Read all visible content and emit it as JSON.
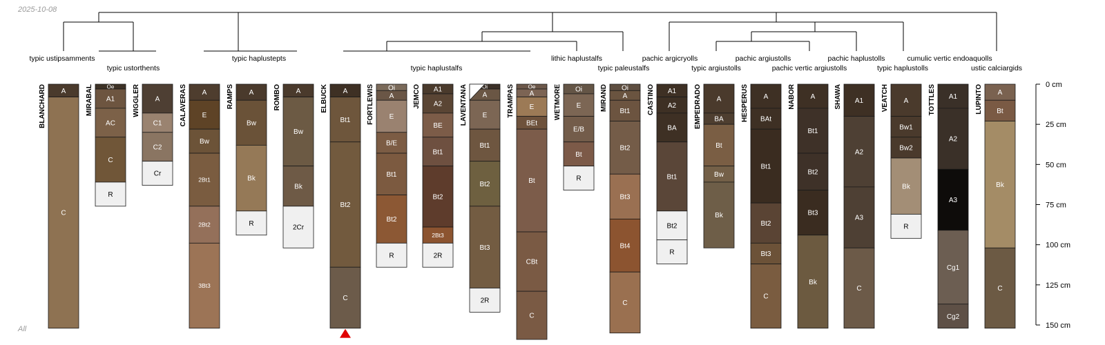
{
  "date_label": "2025-10-08",
  "footer_label": "All",
  "scale": {
    "max_depth_cm": 150,
    "ticks": [
      0,
      25,
      50,
      75,
      100,
      125,
      150
    ],
    "unit": "cm"
  },
  "profiles": [
    {
      "name": "BLANCHARD",
      "taxon": "typic ustipsamments",
      "horizons": [
        {
          "name": "A",
          "top": 0,
          "bottom": 8,
          "color": "#4a3a2c"
        },
        {
          "name": "C",
          "top": 8,
          "bottom": 152,
          "color": "#8e7252"
        }
      ]
    },
    {
      "name": "MIRABAL",
      "taxon": "typic ustorthents",
      "horizons": [
        {
          "name": "Oe",
          "top": 0,
          "bottom": 3,
          "color": "#3d3226"
        },
        {
          "name": "A1",
          "top": 3,
          "bottom": 15,
          "color": "#6d5540"
        },
        {
          "name": "AC",
          "top": 15,
          "bottom": 33,
          "color": "#7c6148"
        },
        {
          "name": "C",
          "top": 33,
          "bottom": 61,
          "color": "#705638"
        },
        {
          "name": "R",
          "top": 61,
          "bottom": 76,
          "color": "#f0f0f0"
        }
      ]
    },
    {
      "name": "WIGGLER",
      "taxon": "typic ustorthents",
      "horizons": [
        {
          "name": "A",
          "top": 0,
          "bottom": 18,
          "color": "#4e3f33"
        },
        {
          "name": "C1",
          "top": 18,
          "bottom": 30,
          "color": "#9a8370"
        },
        {
          "name": "C2",
          "top": 30,
          "bottom": 48,
          "color": "#8a7562"
        },
        {
          "name": "Cr",
          "top": 48,
          "bottom": 63,
          "color": "#f0f0f0"
        }
      ]
    },
    {
      "name": "CALAVERAS",
      "taxon": "typic haplustepts",
      "horizons": [
        {
          "name": "A",
          "top": 0,
          "bottom": 10,
          "color": "#4e3d2e"
        },
        {
          "name": "E",
          "top": 10,
          "bottom": 28,
          "color": "#5e4326"
        },
        {
          "name": "Bw",
          "top": 28,
          "bottom": 43,
          "color": "#6c5338"
        },
        {
          "name": "2Bt1",
          "top": 43,
          "bottom": 76,
          "color": "#7a5c40"
        },
        {
          "name": "2Bt2",
          "top": 76,
          "bottom": 99,
          "color": "#94705a"
        },
        {
          "name": "3Bt3",
          "top": 99,
          "bottom": 152,
          "color": "#9c7456"
        }
      ]
    },
    {
      "name": "RAMPS",
      "taxon": "typic haplustepts",
      "horizons": [
        {
          "name": "A",
          "top": 0,
          "bottom": 10,
          "color": "#4a3a2c"
        },
        {
          "name": "Bw",
          "top": 10,
          "bottom": 38,
          "color": "#6a5238"
        },
        {
          "name": "Bk",
          "top": 38,
          "bottom": 79,
          "color": "#957957"
        },
        {
          "name": "R",
          "top": 79,
          "bottom": 94,
          "color": "#f0f0f0"
        }
      ]
    },
    {
      "name": "ROMBO",
      "taxon": "typic haplustepts",
      "horizons": [
        {
          "name": "A",
          "top": 0,
          "bottom": 8,
          "color": "#4a3a2c"
        },
        {
          "name": "Bw",
          "top": 8,
          "bottom": 51,
          "color": "#6c5a44"
        },
        {
          "name": "Bk",
          "top": 51,
          "bottom": 76,
          "color": "#6e5a46"
        },
        {
          "name": "2Cr",
          "top": 76,
          "bottom": 102,
          "color": "#f0f0f0"
        }
      ]
    },
    {
      "name": "ELBUCK",
      "taxon": "typic haplustalfs",
      "horizons": [
        {
          "name": "A",
          "top": 0,
          "bottom": 8,
          "color": "#3e3024"
        },
        {
          "name": "Bt1",
          "top": 8,
          "bottom": 36,
          "color": "#6e563c"
        },
        {
          "name": "Bt2",
          "top": 36,
          "bottom": 114,
          "color": "#725a3e"
        },
        {
          "name": "C",
          "top": 114,
          "bottom": 152,
          "color": "#6c5b4a"
        }
      ]
    },
    {
      "name": "FORTLEWIS",
      "taxon": "typic haplustalfs",
      "horizons": [
        {
          "name": "Oi",
          "top": 0,
          "bottom": 4,
          "color": "#7a6a5a"
        },
        {
          "name": "A",
          "top": 4,
          "bottom": 10,
          "color": "#6a5646"
        },
        {
          "name": "E",
          "top": 10,
          "bottom": 30,
          "color": "#9a8270"
        },
        {
          "name": "B/E",
          "top": 30,
          "bottom": 43,
          "color": "#7c5c44"
        },
        {
          "name": "Bt1",
          "top": 43,
          "bottom": 69,
          "color": "#7c5a40"
        },
        {
          "name": "Bt2",
          "top": 69,
          "bottom": 99,
          "color": "#8c5834"
        },
        {
          "name": "R",
          "top": 99,
          "bottom": 114,
          "color": "#f0f0f0"
        }
      ]
    },
    {
      "name": "JEMCO",
      "taxon": "typic haplustalfs",
      "horizons": [
        {
          "name": "A1",
          "top": 0,
          "bottom": 6,
          "color": "#4a3a2c"
        },
        {
          "name": "A2",
          "top": 6,
          "bottom": 18,
          "color": "#5a4534"
        },
        {
          "name": "BE",
          "top": 18,
          "bottom": 33,
          "color": "#7c5c48"
        },
        {
          "name": "Bt1",
          "top": 33,
          "bottom": 51,
          "color": "#6e5040"
        },
        {
          "name": "Bt2",
          "top": 51,
          "bottom": 89,
          "color": "#5e3c2c"
        },
        {
          "name": "2Bt3",
          "top": 89,
          "bottom": 99,
          "color": "#8c5430"
        },
        {
          "name": "2R",
          "top": 99,
          "bottom": 114,
          "color": "#f0f0f0"
        }
      ]
    },
    {
      "name": "LAVENTANA",
      "taxon": "typic haplustalfs",
      "horizons": [
        {
          "name": "Oi",
          "top": 0,
          "bottom": 3,
          "color": "#3b3027"
        },
        {
          "name": "A",
          "top": 3,
          "bottom": 10,
          "color": "#6a5644"
        },
        {
          "name": "E",
          "top": 10,
          "bottom": 28,
          "color": "#7c6654"
        },
        {
          "name": "Bt1",
          "top": 28,
          "bottom": 48,
          "color": "#6e5640"
        },
        {
          "name": "Bt2",
          "top": 48,
          "bottom": 76,
          "color": "#6e6040"
        },
        {
          "name": "Bt3",
          "top": 76,
          "bottom": 127,
          "color": "#735c42"
        },
        {
          "name": "2R",
          "top": 127,
          "bottom": 142,
          "color": "#f0f0f0"
        }
      ]
    },
    {
      "name": "TRAMPAS",
      "taxon": "lithic haplustalfs",
      "horizons": [
        {
          "name": "Oe",
          "top": 0,
          "bottom": 3,
          "color": "#6c584a"
        },
        {
          "name": "A",
          "top": 3,
          "bottom": 8,
          "color": "#7c6454"
        },
        {
          "name": "E",
          "top": 8,
          "bottom": 20,
          "color": "#9c7a56"
        },
        {
          "name": "BEt",
          "top": 20,
          "bottom": 28,
          "color": "#6e523c"
        },
        {
          "name": "Bt",
          "top": 28,
          "bottom": 92,
          "color": "#7c5c4a"
        },
        {
          "name": "CBt",
          "top": 92,
          "bottom": 129,
          "color": "#7a5a44"
        },
        {
          "name": "C",
          "top": 129,
          "bottom": 159,
          "color": "#7a5a44"
        }
      ]
    },
    {
      "name": "WETMORE",
      "taxon": "lithic haplustalfs",
      "horizons": [
        {
          "name": "Oi",
          "top": 0,
          "bottom": 6,
          "color": "#645546"
        },
        {
          "name": "E",
          "top": 6,
          "bottom": 20,
          "color": "#7c6654"
        },
        {
          "name": "E/B",
          "top": 20,
          "bottom": 36,
          "color": "#735c4a"
        },
        {
          "name": "Bt",
          "top": 36,
          "bottom": 51,
          "color": "#7c5a48"
        },
        {
          "name": "R",
          "top": 51,
          "bottom": 66,
          "color": "#f0f0f0"
        }
      ]
    },
    {
      "name": "MIRAND",
      "taxon": "typic paleustalfs",
      "horizons": [
        {
          "name": "Oi",
          "top": 0,
          "bottom": 4,
          "color": "#5e4e40"
        },
        {
          "name": "A",
          "top": 4,
          "bottom": 10,
          "color": "#6a5440"
        },
        {
          "name": "Bt1",
          "top": 10,
          "bottom": 23,
          "color": "#6c5440"
        },
        {
          "name": "Bt2",
          "top": 23,
          "bottom": 56,
          "color": "#745c48"
        },
        {
          "name": "Bt3",
          "top": 56,
          "bottom": 84,
          "color": "#9a7052"
        },
        {
          "name": "Bt4",
          "top": 84,
          "bottom": 117,
          "color": "#8c5430"
        },
        {
          "name": "C",
          "top": 117,
          "bottom": 155,
          "color": "#9a7050"
        }
      ]
    },
    {
      "name": "CASTINO",
      "taxon": "pachic argicryolls",
      "horizons": [
        {
          "name": "A1",
          "top": 0,
          "bottom": 8,
          "color": "#3e3024"
        },
        {
          "name": "A2",
          "top": 8,
          "bottom": 18,
          "color": "#3e3024"
        },
        {
          "name": "BA",
          "top": 18,
          "bottom": 36,
          "color": "#3e3024"
        },
        {
          "name": "Bt1",
          "top": 36,
          "bottom": 79,
          "color": "#5a4638"
        },
        {
          "name": "Bt2",
          "top": 79,
          "bottom": 97,
          "color": "#f0f0f0"
        },
        {
          "name": "R",
          "top": 97,
          "bottom": 112,
          "color": "#f0f0f0"
        }
      ]
    },
    {
      "name": "EMPEDRADO",
      "taxon": "typic argiustolls",
      "horizons": [
        {
          "name": "A",
          "top": 0,
          "bottom": 18,
          "color": "#4a3a2c"
        },
        {
          "name": "BA",
          "top": 18,
          "bottom": 25,
          "color": "#4e3e30"
        },
        {
          "name": "Bt",
          "top": 25,
          "bottom": 51,
          "color": "#7a5e44"
        },
        {
          "name": "Bw",
          "top": 51,
          "bottom": 61,
          "color": "#746048"
        },
        {
          "name": "Bk",
          "top": 61,
          "bottom": 102,
          "color": "#6e5e48"
        }
      ]
    },
    {
      "name": "HESPERUS",
      "taxon": "pachic argiustolls",
      "horizons": [
        {
          "name": "A",
          "top": 0,
          "bottom": 15,
          "color": "#3e3024"
        },
        {
          "name": "BAt",
          "top": 15,
          "bottom": 28,
          "color": "#3e3024"
        },
        {
          "name": "Bt1",
          "top": 28,
          "bottom": 74,
          "color": "#3a2c20"
        },
        {
          "name": "Bt2",
          "top": 74,
          "bottom": 99,
          "color": "#5a4434"
        },
        {
          "name": "Bt3",
          "top": 99,
          "bottom": 112,
          "color": "#6c5238"
        },
        {
          "name": "C",
          "top": 112,
          "bottom": 152,
          "color": "#7a5c40"
        }
      ]
    },
    {
      "name": "NABOR",
      "taxon": "pachic vertic argiustolls",
      "horizons": [
        {
          "name": "A",
          "top": 0,
          "bottom": 15,
          "color": "#3e3024"
        },
        {
          "name": "Bt1",
          "top": 15,
          "bottom": 43,
          "color": "#3e3128"
        },
        {
          "name": "Bt2",
          "top": 43,
          "bottom": 66,
          "color": "#3e3128"
        },
        {
          "name": "Bt3",
          "top": 66,
          "bottom": 94,
          "color": "#3a2c20"
        },
        {
          "name": "Bk",
          "top": 94,
          "bottom": 152,
          "color": "#6c5a40"
        }
      ]
    },
    {
      "name": "SHAWA",
      "taxon": "pachic haplustolls",
      "horizons": [
        {
          "name": "A1",
          "top": 0,
          "bottom": 20,
          "color": "#3e3024"
        },
        {
          "name": "A2",
          "top": 20,
          "bottom": 64,
          "color": "#4e4034"
        },
        {
          "name": "A3",
          "top": 64,
          "bottom": 102,
          "color": "#4e4034"
        },
        {
          "name": "C",
          "top": 102,
          "bottom": 152,
          "color": "#6c5a48"
        }
      ]
    },
    {
      "name": "VEATCH",
      "taxon": "typic haplustolls",
      "horizons": [
        {
          "name": "A",
          "top": 0,
          "bottom": 20,
          "color": "#4a3a2c"
        },
        {
          "name": "Bw1",
          "top": 20,
          "bottom": 33,
          "color": "#4a3a2c"
        },
        {
          "name": "Bw2",
          "top": 33,
          "bottom": 46,
          "color": "#4a3a2c"
        },
        {
          "name": "Bk",
          "top": 46,
          "bottom": 81,
          "color": "#a38e76"
        },
        {
          "name": "R",
          "top": 81,
          "bottom": 96,
          "color": "#f0f0f0"
        }
      ]
    },
    {
      "name": "TOTTLES",
      "taxon": "cumulic vertic endoaquolls",
      "horizons": [
        {
          "name": "A1",
          "top": 0,
          "bottom": 15,
          "color": "#3a3028"
        },
        {
          "name": "A2",
          "top": 15,
          "bottom": 53,
          "color": "#3a3028"
        },
        {
          "name": "A3",
          "top": 53,
          "bottom": 91,
          "color": "#0e0c0a"
        },
        {
          "name": "Cg1",
          "top": 91,
          "bottom": 137,
          "color": "#6c5e52"
        },
        {
          "name": "Cg2",
          "top": 137,
          "bottom": 152,
          "color": "#5e5046"
        }
      ]
    },
    {
      "name": "LUPINTO",
      "taxon": "ustic calciargids",
      "horizons": [
        {
          "name": "A",
          "top": 0,
          "bottom": 10,
          "color": "#7a6250"
        },
        {
          "name": "Bt",
          "top": 10,
          "bottom": 23,
          "color": "#7a5a44"
        },
        {
          "name": "Bk",
          "top": 23,
          "bottom": 102,
          "color": "#a48c66"
        },
        {
          "name": "C",
          "top": 102,
          "bottom": 152,
          "color": "#6c5a44"
        }
      ]
    }
  ],
  "taxon_labels": [
    "typic ustipsamments",
    "typic ustorthents",
    "typic haplustepts",
    "typic haplustalfs",
    "lithic haplustalfs",
    "typic paleustalfs",
    "pachic argicryolls",
    "typic argiustolls",
    "pachic argiustolls",
    "pachic vertic argiustolls",
    "pachic haplustolls",
    "typic haplustolls",
    "cumulic vertic endoaquolls",
    "ustic calciargids"
  ]
}
